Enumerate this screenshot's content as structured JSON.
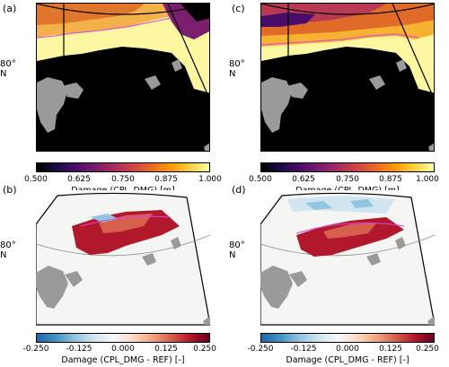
{
  "chart_data": [
    {
      "type": "heatmap",
      "panel": "(a)",
      "lat_label": "80° N",
      "colorbar": {
        "label": "Damage (CPL_DMG) [m]",
        "ticks": [
          "0.500",
          "0.625",
          "0.750",
          "0.875",
          "1.000"
        ],
        "range": [
          0.5,
          1.0
        ],
        "colormap": "inferno"
      }
    },
    {
      "type": "heatmap",
      "panel": "(c)",
      "lat_label": "80° N",
      "colorbar": {
        "label": "Damage (CPL_DMG) [m]",
        "ticks": [
          "0.500",
          "0.625",
          "0.750",
          "0.875",
          "1.000"
        ],
        "range": [
          0.5,
          1.0
        ],
        "colormap": "inferno"
      }
    },
    {
      "type": "heatmap",
      "panel": "(b)",
      "lat_label": "80° N",
      "colorbar": {
        "label": "Damage (CPL_DMG - REF) [-]",
        "ticks": [
          "-0.250",
          "-0.125",
          "0.000",
          "0.125",
          "0.250"
        ],
        "range": [
          -0.25,
          0.25
        ],
        "colormap": "RdBu_r"
      }
    },
    {
      "type": "heatmap",
      "panel": "(d)",
      "lat_label": "80° N",
      "colorbar": {
        "label": "Damage (CPL_DMG - REF) [-]",
        "ticks": [
          "-0.250",
          "-0.125",
          "0.000",
          "0.125",
          "0.250"
        ],
        "range": [
          -0.25,
          0.25
        ],
        "colormap": "RdBu_r"
      }
    }
  ],
  "colors": {
    "land": "#9a9a9a",
    "ocean_dark": "#000000",
    "ocean_light": "#f5f5f3",
    "edge_contour": "#e040e0",
    "damage_high": "#fcf7a0",
    "damage_mid": "#f0a030",
    "diff_pos": "#b2182b",
    "diff_neg": "#92c5de"
  }
}
